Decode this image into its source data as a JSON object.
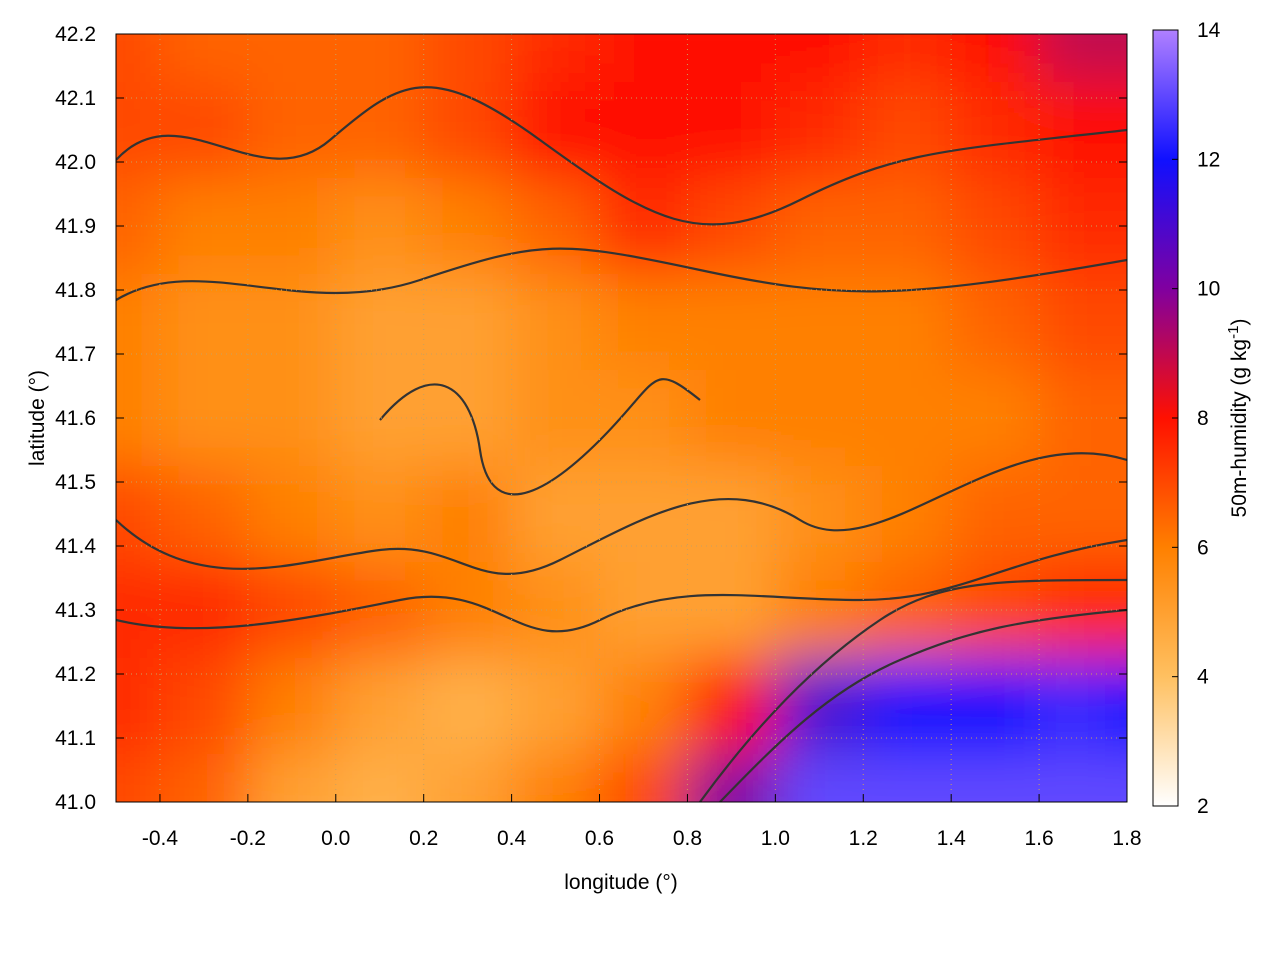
{
  "chart_data": {
    "type": "heatmap",
    "xlabel": "longitude (°)",
    "ylabel": "latitude (°)",
    "colorbar_label": "50m-humidity (g kg",
    "colorbar_label_sup": "-1",
    "colorbar_label_end": ")",
    "xlim": [
      -0.5,
      1.8
    ],
    "ylim": [
      41.0,
      42.2
    ],
    "clim": [
      2,
      14
    ],
    "x_ticks": [
      "-0.4",
      "-0.2",
      "0.0",
      "0.2",
      "0.4",
      "0.6",
      "0.8",
      "1.0",
      "1.2",
      "1.4",
      "1.6",
      "1.8"
    ],
    "y_ticks": [
      "41.0",
      "41.1",
      "41.2",
      "41.3",
      "41.4",
      "41.5",
      "41.6",
      "41.7",
      "41.8",
      "41.9",
      "42.0",
      "42.1",
      "42.2"
    ],
    "c_ticks": [
      "2",
      "4",
      "6",
      "8",
      "10",
      "12",
      "14"
    ],
    "colormap": [
      [
        "2",
        "#ffffff"
      ],
      [
        "4",
        "#ffc060"
      ],
      [
        "6",
        "#ff8000"
      ],
      [
        "8",
        "#ff1000"
      ],
      [
        "10",
        "#8000a0"
      ],
      [
        "12",
        "#1010ff"
      ],
      [
        "14",
        "#b080ff"
      ]
    ],
    "grid_lon": [
      -0.5,
      -0.3,
      -0.1,
      0.1,
      0.3,
      0.5,
      0.7,
      0.9,
      1.1,
      1.3,
      1.5,
      1.7,
      1.8
    ],
    "grid_lat": [
      42.2,
      42.05,
      41.9,
      41.75,
      41.6,
      41.45,
      41.3,
      41.15,
      41.0
    ],
    "values": [
      [
        7,
        6.5,
        6.5,
        6.5,
        7,
        7.5,
        8,
        8,
        8,
        7.5,
        8,
        9,
        9
      ],
      [
        7,
        7,
        6.5,
        6.5,
        7,
        8,
        8,
        8,
        7.5,
        7,
        7.5,
        8,
        8
      ],
      [
        6.5,
        6,
        6,
        5.5,
        6,
        6.5,
        7.5,
        7,
        6.5,
        6.5,
        7,
        7.5,
        7.5
      ],
      [
        6,
        5.5,
        5.5,
        5,
        5,
        5.5,
        6,
        6,
        6,
        6,
        6.5,
        7,
        7
      ],
      [
        6,
        5.5,
        5.5,
        5,
        5,
        5.5,
        5.5,
        6,
        6,
        6,
        6,
        6.5,
        6.5
      ],
      [
        7,
        6.5,
        6,
        5.5,
        6,
        5,
        5,
        5,
        5.5,
        6,
        6.5,
        6.5,
        6.5
      ],
      [
        7.5,
        7.5,
        7,
        6.5,
        6,
        5.5,
        5,
        5,
        6,
        6.5,
        7,
        7.5,
        7.5
      ],
      [
        7.5,
        7,
        6,
        5,
        4.5,
        5,
        6,
        8,
        11,
        12,
        12,
        12.5,
        12
      ],
      [
        7,
        6.5,
        5,
        4.5,
        5,
        6,
        7,
        10,
        13,
        13,
        13,
        13,
        13
      ]
    ],
    "grid": true,
    "contours": true
  }
}
